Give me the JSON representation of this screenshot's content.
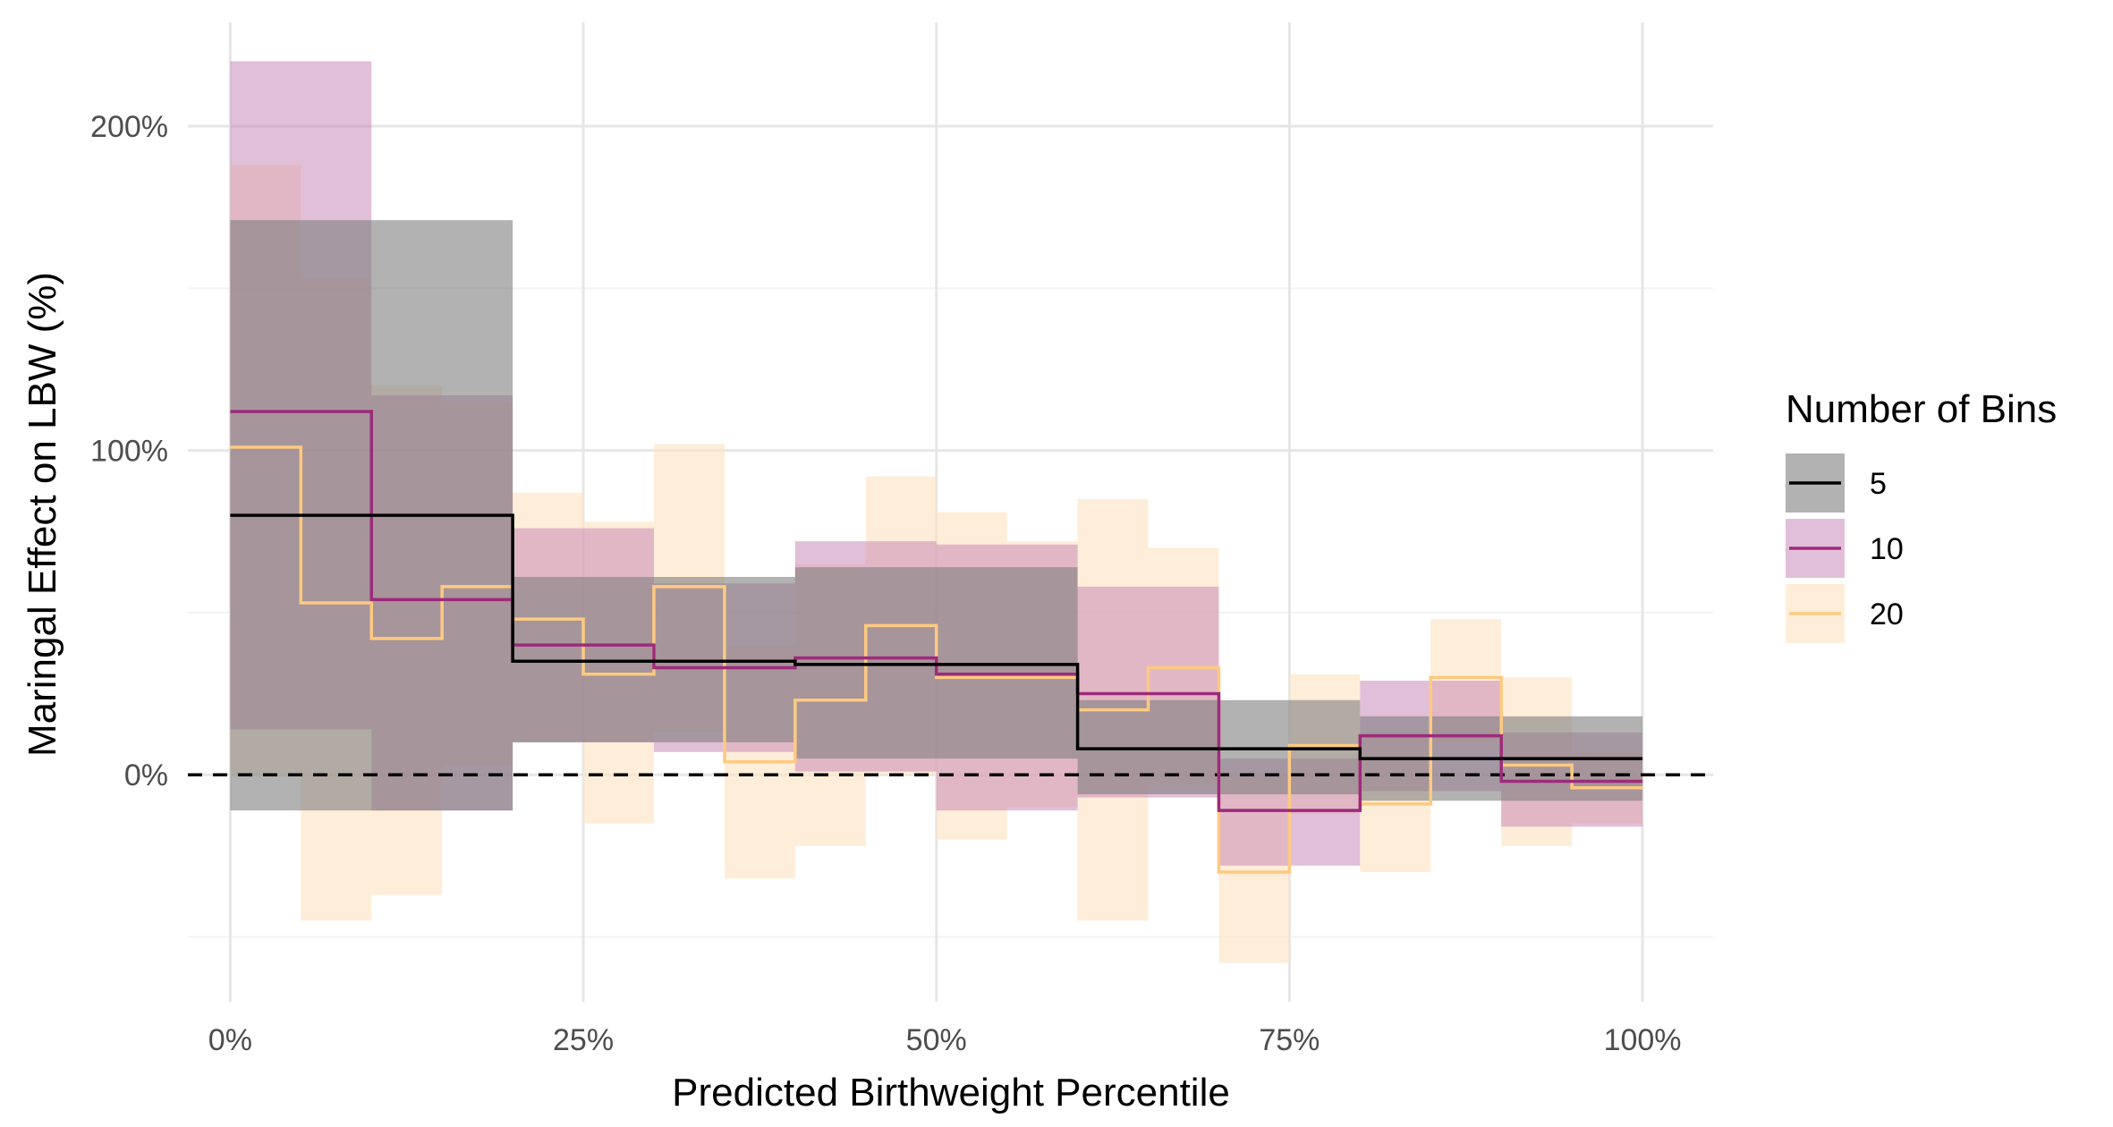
{
  "chart_data": {
    "type": "line",
    "title": "",
    "xlabel": "Predicted Birthweight Percentile",
    "ylabel": "Maringal Effect on LBW (%)",
    "xlim": [
      -3,
      105
    ],
    "ylim": [
      -70,
      232
    ],
    "x_ticks": [
      {
        "value": 0,
        "label": "0%"
      },
      {
        "value": 25,
        "label": "25%"
      },
      {
        "value": 50,
        "label": "50%"
      },
      {
        "value": 75,
        "label": "75%"
      },
      {
        "value": 100,
        "label": "100%"
      }
    ],
    "y_ticks": [
      {
        "value": 0,
        "label": "0%"
      },
      {
        "value": 100,
        "label": "100%"
      },
      {
        "value": 200,
        "label": "200%"
      }
    ],
    "grid": true,
    "reference_line": {
      "y": 0,
      "style": "dashed",
      "color": "#000000"
    },
    "legend": {
      "title": "Number of Bins",
      "position": "right"
    },
    "series": [
      {
        "name": "20",
        "color": "#fdca80",
        "band_color": "#fde5c4",
        "band_opacity": 0.65,
        "bins": [
          {
            "x0": 0,
            "x1": 5,
            "y": 101,
            "lo": 0,
            "hi": 188
          },
          {
            "x0": 5,
            "x1": 10,
            "y": 53,
            "lo": -45,
            "hi": 153
          },
          {
            "x0": 10,
            "x1": 15,
            "y": 42,
            "lo": -37,
            "hi": 120
          },
          {
            "x0": 15,
            "x1": 20,
            "y": 58,
            "lo": 3,
            "hi": 115
          },
          {
            "x0": 20,
            "x1": 25,
            "y": 48,
            "lo": 10,
            "hi": 87
          },
          {
            "x0": 25,
            "x1": 30,
            "y": 31,
            "lo": -15,
            "hi": 78
          },
          {
            "x0": 30,
            "x1": 35,
            "y": 58,
            "lo": 13,
            "hi": 102
          },
          {
            "x0": 35,
            "x1": 40,
            "y": 4,
            "lo": -32,
            "hi": 40
          },
          {
            "x0": 40,
            "x1": 45,
            "y": 23,
            "lo": -22,
            "hi": 65
          },
          {
            "x0": 45,
            "x1": 50,
            "y": 46,
            "lo": 0,
            "hi": 92
          },
          {
            "x0": 50,
            "x1": 55,
            "y": 30,
            "lo": -20,
            "hi": 81
          },
          {
            "x0": 55,
            "x1": 60,
            "y": 30,
            "lo": -10,
            "hi": 72
          },
          {
            "x0": 60,
            "x1": 65,
            "y": 20,
            "lo": -45,
            "hi": 85
          },
          {
            "x0": 65,
            "x1": 70,
            "y": 33,
            "lo": -3,
            "hi": 70
          },
          {
            "x0": 70,
            "x1": 75,
            "y": -30,
            "lo": -58,
            "hi": 0
          },
          {
            "x0": 75,
            "x1": 80,
            "y": 9,
            "lo": -12,
            "hi": 31
          },
          {
            "x0": 80,
            "x1": 85,
            "y": -9,
            "lo": -30,
            "hi": 13
          },
          {
            "x0": 85,
            "x1": 90,
            "y": 30,
            "lo": 10,
            "hi": 48
          },
          {
            "x0": 90,
            "x1": 95,
            "y": 3,
            "lo": -22,
            "hi": 30
          },
          {
            "x0": 95,
            "x1": 100,
            "y": -4,
            "lo": -15,
            "hi": 7
          }
        ]
      },
      {
        "name": "10",
        "color": "#9e2a7c",
        "band_color": "#c47fb3",
        "band_opacity": 0.5,
        "bins": [
          {
            "x0": 0,
            "x1": 10,
            "y": 112,
            "lo": 14,
            "hi": 220
          },
          {
            "x0": 10,
            "x1": 20,
            "y": 54,
            "lo": -11,
            "hi": 117
          },
          {
            "x0": 20,
            "x1": 30,
            "y": 40,
            "lo": 10,
            "hi": 76
          },
          {
            "x0": 30,
            "x1": 40,
            "y": 33,
            "lo": 7,
            "hi": 59
          },
          {
            "x0": 40,
            "x1": 50,
            "y": 36,
            "lo": 1,
            "hi": 72
          },
          {
            "x0": 50,
            "x1": 60,
            "y": 31,
            "lo": -11,
            "hi": 71
          },
          {
            "x0": 60,
            "x1": 70,
            "y": 25,
            "lo": -7,
            "hi": 58
          },
          {
            "x0": 70,
            "x1": 80,
            "y": -11,
            "lo": -28,
            "hi": 5
          },
          {
            "x0": 80,
            "x1": 90,
            "y": 12,
            "lo": -5,
            "hi": 29
          },
          {
            "x0": 90,
            "x1": 100,
            "y": -2,
            "lo": -16,
            "hi": 13
          }
        ]
      },
      {
        "name": "5",
        "color": "#000000",
        "band_color": "#7f7f7f",
        "band_opacity": 0.6,
        "bins": [
          {
            "x0": 0,
            "x1": 20,
            "y": 80,
            "lo": -11,
            "hi": 171
          },
          {
            "x0": 20,
            "x1": 40,
            "y": 35,
            "lo": 10,
            "hi": 61
          },
          {
            "x0": 40,
            "x1": 60,
            "y": 34,
            "lo": 5,
            "hi": 64
          },
          {
            "x0": 60,
            "x1": 80,
            "y": 8,
            "lo": -6,
            "hi": 23
          },
          {
            "x0": 80,
            "x1": 100,
            "y": 5,
            "lo": -8,
            "hi": 18
          }
        ]
      }
    ],
    "legend_order": [
      "5",
      "10",
      "20"
    ]
  }
}
